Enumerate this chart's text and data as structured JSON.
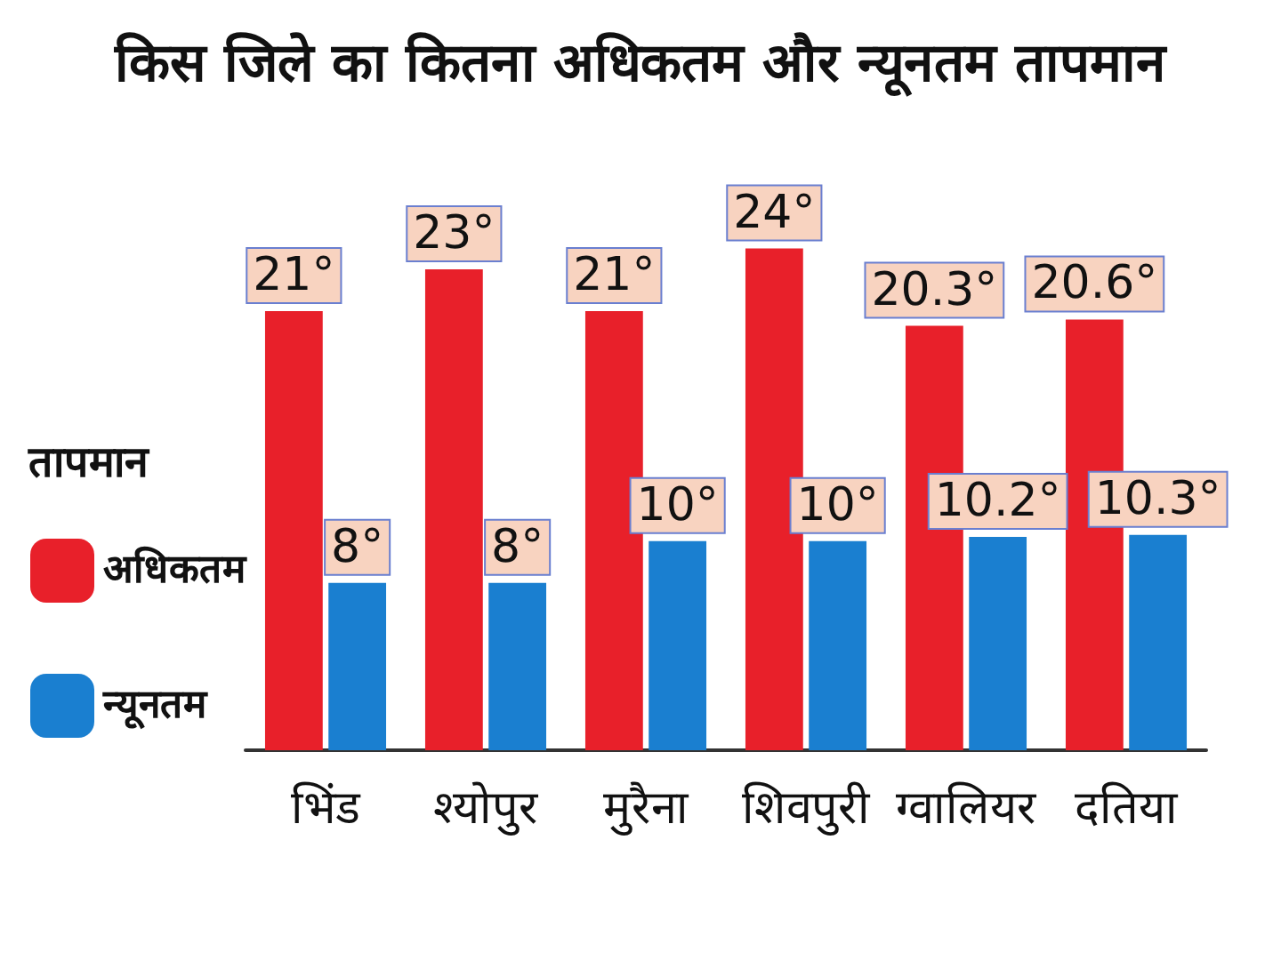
{
  "chart_data": {
    "type": "bar",
    "title": "किस जिले का कितना अधिकतम और न्यूनतम तापमान",
    "categories": [
      "भिंड",
      "श्योपुर",
      "मुरैना",
      "शिवपुरी",
      "ग्वालियर",
      "दतिया"
    ],
    "legend_title": "तापमान",
    "legend": "left",
    "tick_labels": "x",
    "series": [
      {
        "name": "अधिकतम",
        "color": "#e8202a",
        "values": [
          21,
          23,
          21,
          24,
          20.3,
          20.6
        ],
        "value_labels": [
          "21°",
          "23°",
          "21°",
          "24°",
          "20.3°",
          "20.6°"
        ]
      },
      {
        "name": "न्यूनतम",
        "color": "#1a7fd0",
        "values": [
          8,
          8,
          10,
          10,
          10.2,
          10.3
        ],
        "value_labels": [
          "8°",
          "8°",
          "10°",
          "10°",
          "10.2°",
          "10.3°"
        ]
      }
    ]
  }
}
